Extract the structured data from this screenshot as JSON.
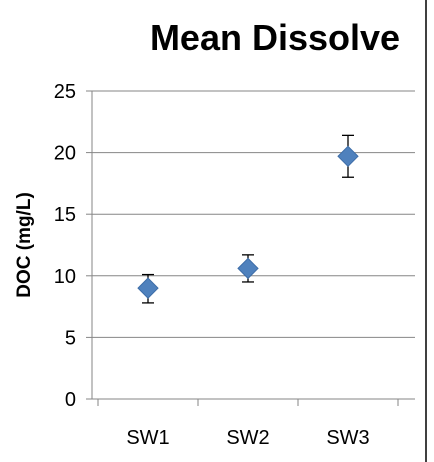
{
  "chart_data": {
    "type": "scatter",
    "title": "Mean Dissolve",
    "xlabel": "",
    "ylabel": "DOC (mg/L)",
    "categories": [
      "SW1",
      "SW2",
      "SW3"
    ],
    "ylim": [
      0,
      25
    ],
    "yticks": [
      "0",
      "5",
      "10",
      "15",
      "20",
      "25"
    ],
    "grid": true,
    "legend": "none",
    "series": [
      {
        "values": [
          9.0,
          10.6,
          19.7
        ],
        "error_low": [
          7.8,
          9.5,
          18.0
        ],
        "error_high": [
          10.1,
          11.7,
          21.4
        ],
        "color": "#4F81BD",
        "marker": "diamond"
      }
    ]
  }
}
